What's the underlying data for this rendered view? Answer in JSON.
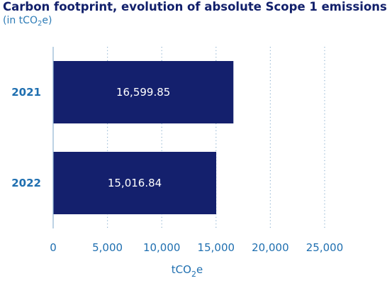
{
  "chart_data": {
    "type": "bar",
    "orientation": "horizontal",
    "title": "Carbon footprint, evolution of absolute Scope 1 emissions",
    "subtitle": {
      "prefix": "(in tCO",
      "sub": "2",
      "suffix": "e)"
    },
    "categories": [
      "2021",
      "2022"
    ],
    "values": [
      16599.85,
      15016.84
    ],
    "data_labels": [
      "16,599.85",
      "15,016.84"
    ],
    "xlabel": {
      "prefix": "tCO",
      "sub": "2",
      "suffix": "e"
    },
    "xlim": [
      0,
      25000
    ],
    "xticks": [
      0,
      5000,
      10000,
      15000,
      20000,
      25000
    ],
    "xtick_labels": [
      "0",
      "5,000",
      "10,000",
      "15,000",
      "20,000",
      "25,000"
    ],
    "grid": "vertical dotted",
    "bar_color": "#14206d",
    "grid_color": "#8fb3d1",
    "label_color": "#1f6fb0",
    "title_color": "#12206b"
  }
}
